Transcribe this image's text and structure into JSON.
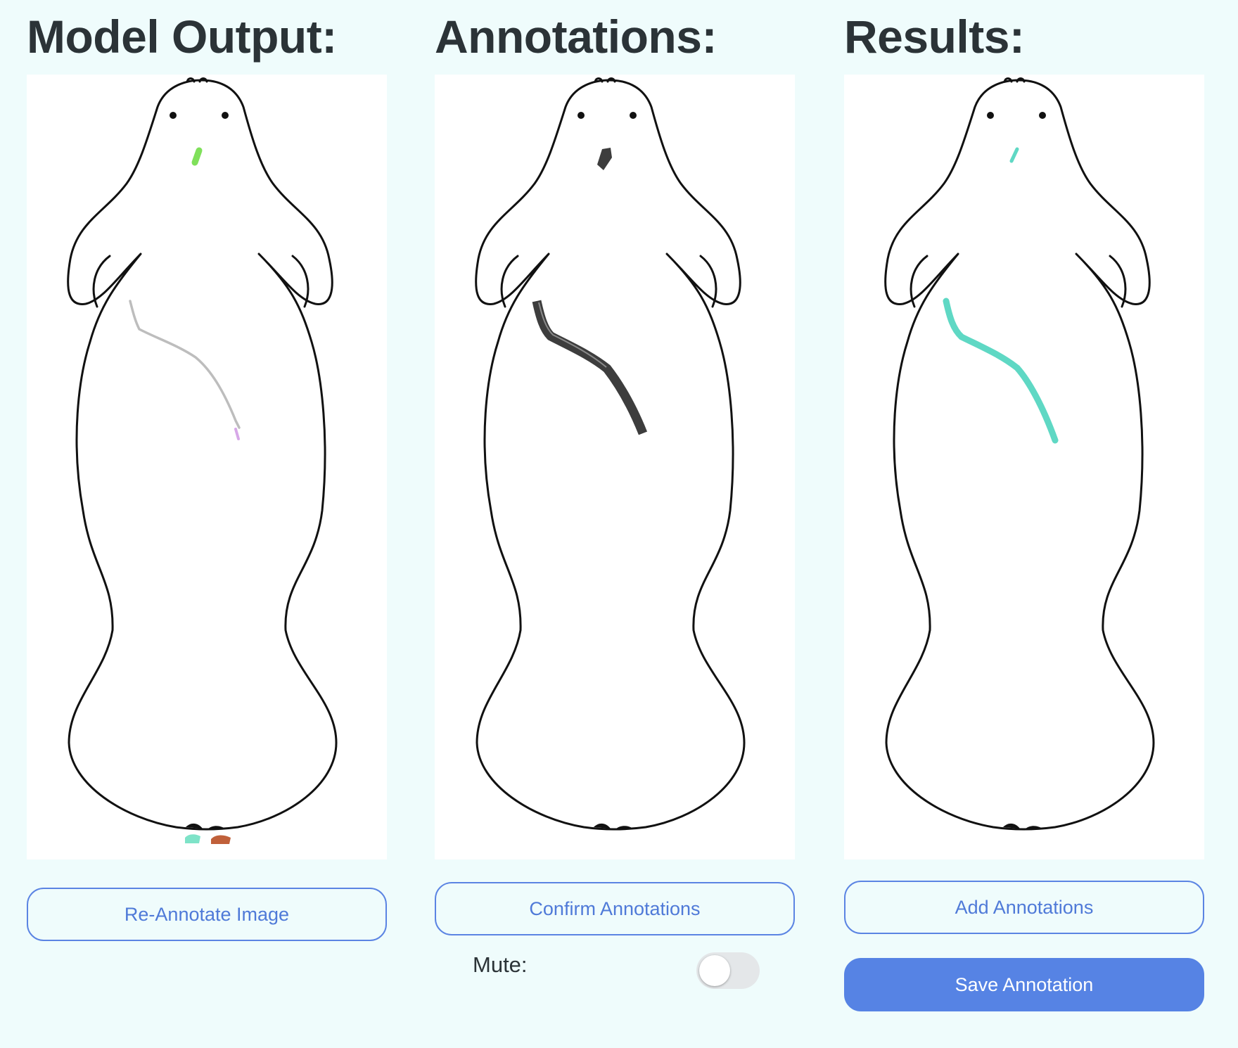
{
  "columns": [
    {
      "title": "Model Output:",
      "button_label": "Re-Annotate Image"
    },
    {
      "title": "Annotations:",
      "button_label": "Confirm Annotations"
    },
    {
      "title": "Results:",
      "button_label": "Add Annotations"
    }
  ],
  "annotations_panel": {
    "mute_label": "Mute:",
    "mute_on": false
  },
  "results_panel": {
    "save_label": "Save Annotation"
  },
  "colors": {
    "background": "#effcfc",
    "accent": "#5683e4",
    "model_scar_gray": "#bdbdbd",
    "model_scar_green": "#7fe05a",
    "model_mark_teal": "#7ee3c8",
    "model_mark_rust": "#c0603a",
    "annotation_dark": "#3d3d3d",
    "result_teal": "#5fd8c4"
  }
}
